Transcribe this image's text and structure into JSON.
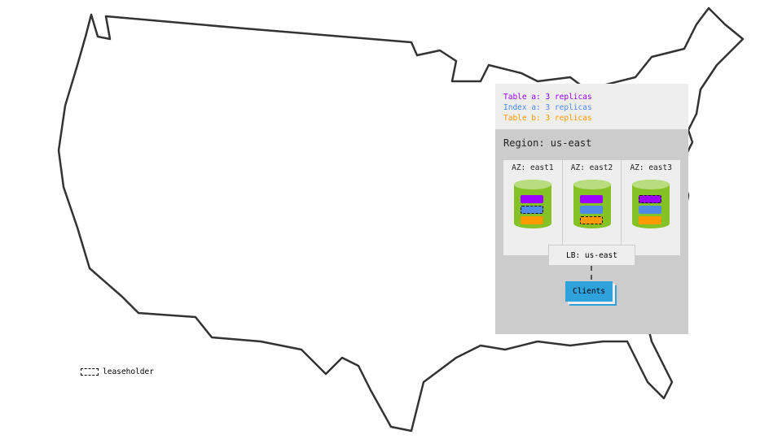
{
  "legend": [
    {
      "label": "Table a: 3 replicas",
      "color": "#9b00ff"
    },
    {
      "label": "Index a: 3 replicas",
      "color": "#4e8ae6"
    },
    {
      "label": "Table b: 3 replicas",
      "color": "#ff9900"
    }
  ],
  "region": {
    "title": "Region: us-east",
    "azs": [
      {
        "label": "AZ: east1",
        "leaseholder": "index-a"
      },
      {
        "label": "AZ: east2",
        "leaseholder": "table-b"
      },
      {
        "label": "AZ: east3",
        "leaseholder": "table-a"
      }
    ],
    "lb": "LB: us-east",
    "clients": "Clients"
  },
  "leaseholder_legend": "leaseholder",
  "colors": {
    "cylinder": "#84c225",
    "clients": "#2fa2dc"
  }
}
